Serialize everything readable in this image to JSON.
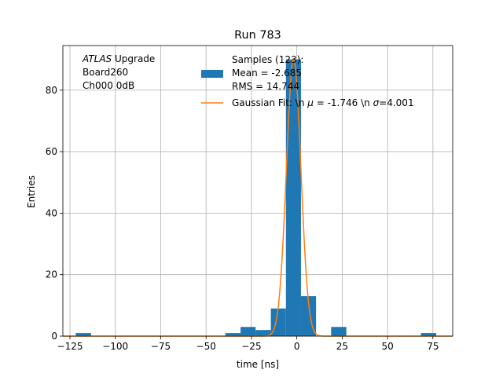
{
  "chart_data": {
    "type": "bar",
    "title": "Run 783",
    "xlabel": "time [ns]",
    "ylabel": "Entries",
    "xlim": [
      -128.9,
      85.9
    ],
    "ylim": [
      0,
      94.5
    ],
    "xticks": [
      -125,
      -100,
      -75,
      -50,
      -25,
      0,
      25,
      50,
      75
    ],
    "yticks": [
      0,
      20,
      40,
      60,
      80
    ],
    "grid": true,
    "legend_position": "top-right",
    "annotation_lines": [
      "ATLAS Upgrade",
      " Board260",
      " Ch000 0dB"
    ],
    "annotation_italic_part": "ATLAS",
    "histogram": {
      "name_lines": [
        "Samples (123):",
        " Mean = -2.685",
        " RMS = 14.744"
      ],
      "color": "#1f77b4",
      "bins": [
        {
          "x0": -121.8,
          "x1": -113.4,
          "count": 1
        },
        {
          "x0": -39.4,
          "x1": -31.0,
          "count": 1
        },
        {
          "x0": -31.0,
          "x1": -22.7,
          "count": 3
        },
        {
          "x0": -22.7,
          "x1": -14.3,
          "count": 2
        },
        {
          "x0": -14.3,
          "x1": -6.0,
          "count": 9
        },
        {
          "x0": -6.0,
          "x1": 2.3,
          "count": 90
        },
        {
          "x0": 2.3,
          "x1": 10.6,
          "count": 13
        },
        {
          "x0": 18.9,
          "x1": 27.3,
          "count": 3
        },
        {
          "x0": 68.4,
          "x1": 76.8,
          "count": 1
        }
      ]
    },
    "fit": {
      "name": "Gaussian Fit: \\n $\\mu$ = -1.746 \\n $\\sigma$=4.001",
      "legend_segments": [
        {
          "t": "Gaussian Fit: \\n ",
          "i": false
        },
        {
          "t": "μ",
          "i": true
        },
        {
          "t": " = -1.746 \\n ",
          "i": false
        },
        {
          "t": "σ",
          "i": true
        },
        {
          "t": "=4.001",
          "i": false
        }
      ],
      "color": "#ff7f0e",
      "mu": -1.746,
      "sigma": 4.001,
      "amplitude": 90
    }
  }
}
